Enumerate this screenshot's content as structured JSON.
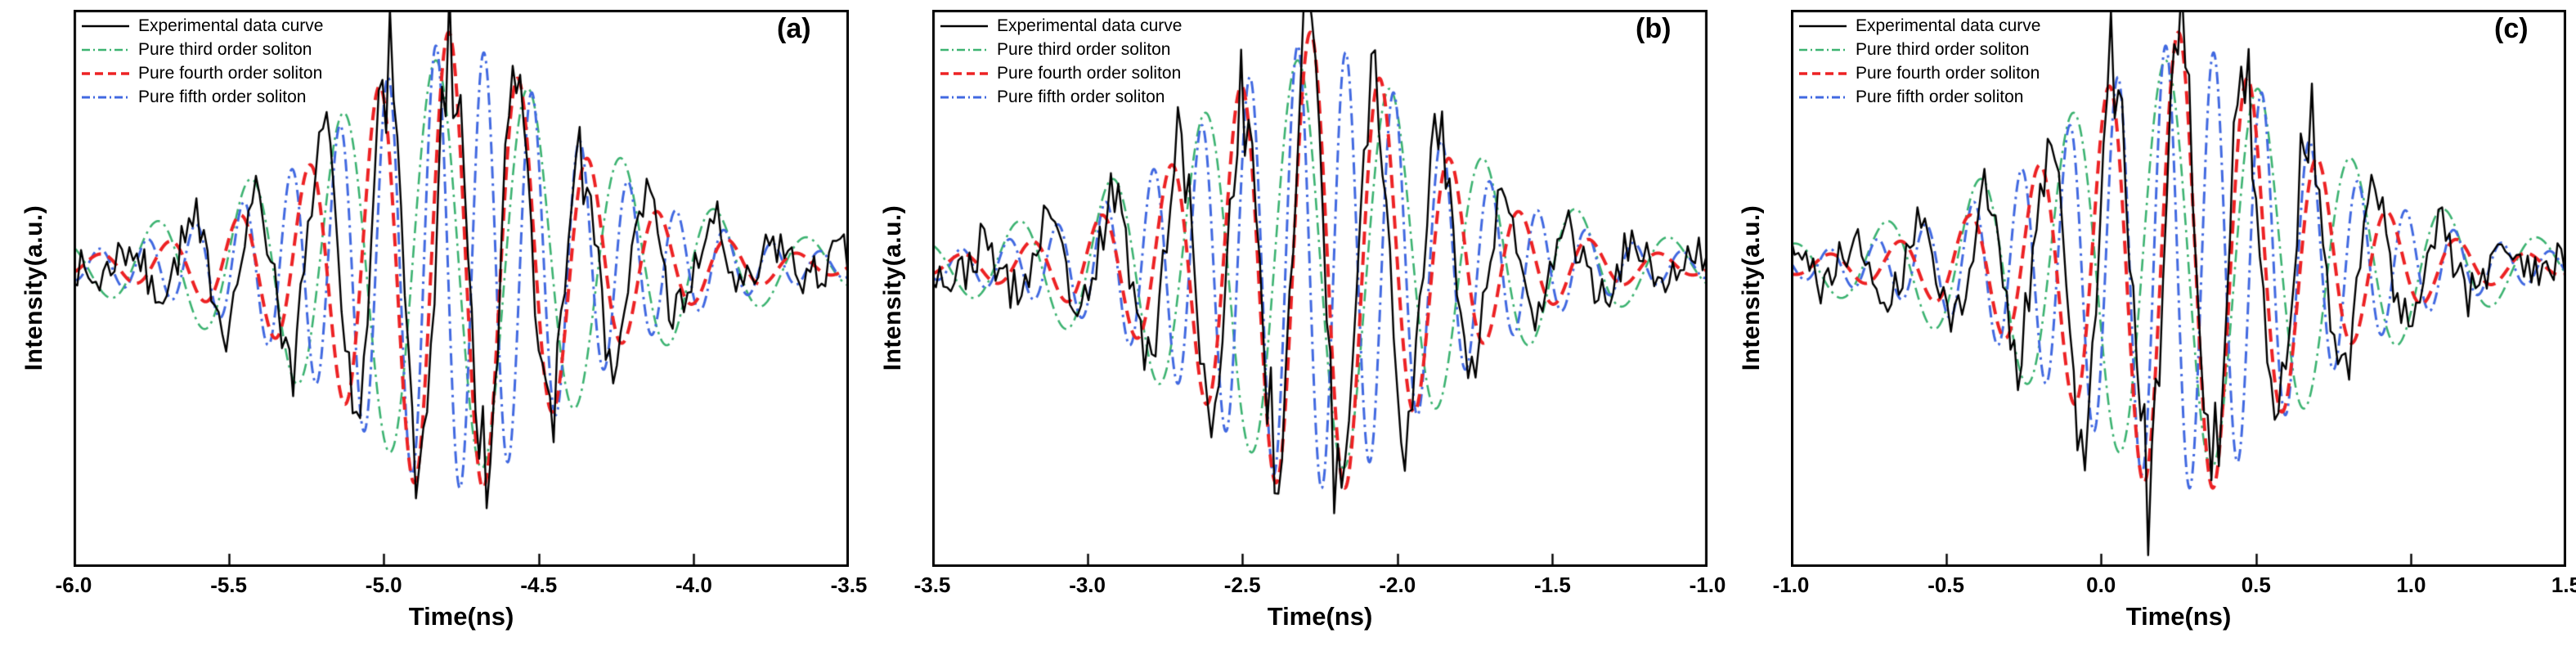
{
  "page": {
    "background": "#ffffff"
  },
  "chart_data": [
    {
      "type": "line",
      "panel_label": "(a)",
      "title": "",
      "xlabel": "Time(ns)",
      "ylabel": "Intensity(a.u.)",
      "xlim": [
        -6.0,
        -3.5
      ],
      "ylim": [
        -1.35,
        1.15
      ],
      "xticks": [
        -6.0,
        -5.5,
        -5.0,
        -4.5,
        -4.0,
        -3.5
      ],
      "xtick_labels": [
        "-6.0",
        "-5.5",
        "-5.0",
        "-4.5",
        "-4.0",
        "-3.5"
      ],
      "grid": false,
      "legend_position": "upper-left",
      "packet_center_ns": -4.78,
      "series": [
        {
          "name": "Experimental data curve",
          "color": "#000000",
          "line_style": "solid",
          "line_width": 2.4,
          "role": "experimental",
          "amplitude": 1.02,
          "period_ns": 0.21,
          "envelope_width_ns": 0.34,
          "phase": 0.0,
          "noise_amplitude": 0.1,
          "noise_step_ns": 0.012,
          "seed": 7
        },
        {
          "name": "Pure third order soliton",
          "color": "#3cb371",
          "line_style": "dashdot",
          "line_width": 2.6,
          "role": "soliton",
          "amplitude": 0.93,
          "period_ns": 0.3,
          "envelope_width_ns": 0.43,
          "phase": 1.1
        },
        {
          "name": "Pure fourth order soliton",
          "color": "#ed2224",
          "line_style": "dashed",
          "line_width": 4.0,
          "role": "soliton",
          "amplitude": 1.05,
          "period_ns": 0.225,
          "envelope_width_ns": 0.31,
          "phase": 0.3
        },
        {
          "name": "Pure fifth order soliton",
          "color": "#4169e1",
          "line_style": "dashdot",
          "line_width": 3.0,
          "role": "soliton",
          "amplitude": 1.0,
          "period_ns": 0.155,
          "envelope_width_ns": 0.35,
          "phase": 2.1
        }
      ]
    },
    {
      "type": "line",
      "panel_label": "(b)",
      "title": "",
      "xlabel": "Time(ns)",
      "ylabel": "Intensity(a.u.)",
      "xlim": [
        -3.5,
        -1.0
      ],
      "ylim": [
        -1.35,
        1.15
      ],
      "xticks": [
        -3.5,
        -3.0,
        -2.5,
        -2.0,
        -1.5,
        -1.0
      ],
      "xtick_labels": [
        "-3.5",
        "-3.0",
        "-2.5",
        "-2.0",
        "-1.5",
        "-1.0"
      ],
      "grid": false,
      "legend_position": "upper-left",
      "packet_center_ns": -2.27,
      "series": [
        {
          "name": "Experimental data curve",
          "color": "#000000",
          "line_style": "solid",
          "line_width": 2.4,
          "role": "experimental",
          "amplitude": 1.02,
          "period_ns": 0.21,
          "envelope_width_ns": 0.34,
          "phase": 0.5,
          "noise_amplitude": 0.1,
          "noise_step_ns": 0.012,
          "seed": 23
        },
        {
          "name": "Pure third order soliton",
          "color": "#3cb371",
          "line_style": "dashdot",
          "line_width": 2.6,
          "role": "soliton",
          "amplitude": 0.93,
          "period_ns": 0.3,
          "envelope_width_ns": 0.43,
          "phase": 1.1
        },
        {
          "name": "Pure fourth order soliton",
          "color": "#ed2224",
          "line_style": "dashed",
          "line_width": 4.0,
          "role": "soliton",
          "amplitude": 1.05,
          "period_ns": 0.225,
          "envelope_width_ns": 0.31,
          "phase": 0.3
        },
        {
          "name": "Pure fifth order soliton",
          "color": "#4169e1",
          "line_style": "dashdot",
          "line_width": 3.0,
          "role": "soliton",
          "amplitude": 1.0,
          "period_ns": 0.155,
          "envelope_width_ns": 0.35,
          "phase": 2.1
        }
      ]
    },
    {
      "type": "line",
      "panel_label": "(c)",
      "title": "",
      "xlabel": "Time(ns)",
      "ylabel": "Intensity(a.u.)",
      "xlim": [
        -1.0,
        1.5
      ],
      "ylim": [
        -1.35,
        1.15
      ],
      "xticks": [
        -1.0,
        -0.5,
        0.0,
        0.5,
        1.0,
        1.5
      ],
      "xtick_labels": [
        "-1.0",
        "-0.5",
        "0.0",
        "0.5",
        "1.0",
        "1.5"
      ],
      "grid": false,
      "legend_position": "upper-left",
      "packet_center_ns": 0.26,
      "series": [
        {
          "name": "Experimental data curve",
          "color": "#000000",
          "line_style": "solid",
          "line_width": 2.4,
          "role": "experimental",
          "amplitude": 1.05,
          "period_ns": 0.21,
          "envelope_width_ns": 0.34,
          "phase": 0.2,
          "noise_amplitude": 0.1,
          "noise_step_ns": 0.012,
          "seed": 41
        },
        {
          "name": "Pure third order soliton",
          "color": "#3cb371",
          "line_style": "dashdot",
          "line_width": 2.6,
          "role": "soliton",
          "amplitude": 0.93,
          "period_ns": 0.3,
          "envelope_width_ns": 0.43,
          "phase": 1.1
        },
        {
          "name": "Pure fourth order soliton",
          "color": "#ed2224",
          "line_style": "dashed",
          "line_width": 4.0,
          "role": "soliton",
          "amplitude": 1.05,
          "period_ns": 0.225,
          "envelope_width_ns": 0.31,
          "phase": 0.3
        },
        {
          "name": "Pure fifth order soliton",
          "color": "#4169e1",
          "line_style": "dashdot",
          "line_width": 3.0,
          "role": "soliton",
          "amplitude": 1.0,
          "period_ns": 0.155,
          "envelope_width_ns": 0.35,
          "phase": 2.1
        }
      ]
    }
  ]
}
